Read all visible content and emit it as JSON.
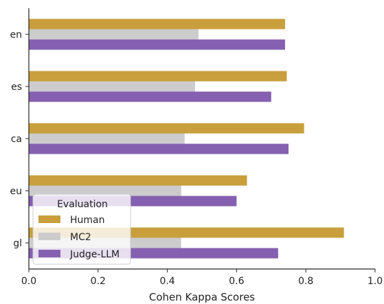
{
  "chart_data": {
    "type": "bar",
    "orientation": "horizontal",
    "categories": [
      "en",
      "es",
      "ca",
      "eu",
      "gl"
    ],
    "series": [
      {
        "name": "Human",
        "color": "#c89f3c",
        "values": [
          0.74,
          0.745,
          0.795,
          0.63,
          0.91
        ]
      },
      {
        "name": "MC2",
        "color": "#cccccc",
        "values": [
          0.49,
          0.48,
          0.45,
          0.44,
          0.44
        ]
      },
      {
        "name": "Judge-LLM",
        "color": "#8560b0",
        "values": [
          0.74,
          0.7,
          0.75,
          0.6,
          0.72
        ]
      }
    ],
    "xlabel": "Cohen Kappa Scores",
    "ylabel": "",
    "xlim": [
      0,
      1.0
    ],
    "xticks": [
      "0.0",
      "0.2",
      "0.4",
      "0.6",
      "0.8",
      "1.0"
    ],
    "legend": {
      "title": "Evaluation",
      "placement": "bottom-left"
    },
    "grid": false
  }
}
